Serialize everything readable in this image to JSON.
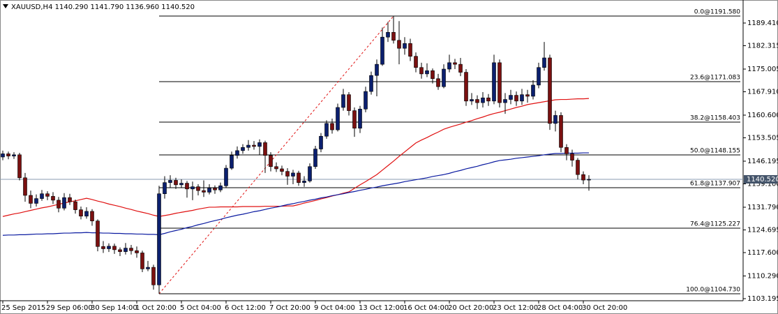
{
  "chart_data": {
    "type": "candlestick",
    "title": "XAUUSD,H4  1140.290 1141.790 1136.960 1140.520",
    "categories": [
      "25 Sep 2015",
      null,
      null,
      null,
      null,
      null,
      null,
      null,
      "29 Sep 06:00",
      null,
      null,
      null,
      null,
      null,
      null,
      null,
      "30 Sep 14:00",
      null,
      null,
      null,
      null,
      null,
      null,
      null,
      "1 Oct 20:00",
      null,
      null,
      null,
      null,
      null,
      null,
      null,
      "5 Oct 04:00",
      null,
      null,
      null,
      null,
      null,
      null,
      null,
      "6 Oct 12:00",
      null,
      null,
      null,
      null,
      null,
      null,
      null,
      "7 Oct 20:00",
      null,
      null,
      null,
      null,
      null,
      null,
      null,
      "9 Oct 04:00",
      null,
      null,
      null,
      null,
      null,
      null,
      null,
      "13 Oct 12:00",
      null,
      null,
      null,
      null,
      null,
      null,
      null,
      "16 Oct 04:00",
      null,
      null,
      null,
      null,
      null,
      null,
      null,
      "20 Oct 20:00",
      null,
      null,
      null,
      null,
      null,
      null,
      null,
      "23 Oct 12:00",
      null,
      null,
      null,
      null,
      null,
      null,
      null,
      "28 Oct 04:00",
      null,
      null,
      null,
      null,
      null,
      null,
      null,
      "30 Oct 20:00",
      null
    ],
    "ohlc": [
      [
        1147.5,
        1149.5,
        1146.5,
        1148.5
      ],
      [
        1148.5,
        1149.2,
        1146.8,
        1147.8
      ],
      [
        1147.8,
        1149.0,
        1146.9,
        1148.2
      ],
      [
        1148.2,
        1148.8,
        1140.2,
        1141.0
      ],
      [
        1141.0,
        1142.5,
        1133.5,
        1135.5
      ],
      [
        1135.5,
        1137.0,
        1131.5,
        1133.0
      ],
      [
        1133.0,
        1135.8,
        1132.0,
        1134.5
      ],
      [
        1134.5,
        1137.2,
        1133.8,
        1136.0
      ],
      [
        1136.0,
        1136.8,
        1134.0,
        1135.2
      ],
      [
        1135.2,
        1136.5,
        1132.8,
        1134.0
      ],
      [
        1134.0,
        1135.0,
        1130.2,
        1131.5
      ],
      [
        1131.5,
        1136.2,
        1130.8,
        1134.8
      ],
      [
        1134.8,
        1136.0,
        1132.5,
        1133.5
      ],
      [
        1133.5,
        1134.2,
        1129.8,
        1131.0
      ],
      [
        1131.0,
        1132.0,
        1128.0,
        1129.0
      ],
      [
        1129.0,
        1131.8,
        1128.2,
        1130.5
      ],
      [
        1130.5,
        1131.2,
        1126.0,
        1127.5
      ],
      [
        1127.5,
        1128.0,
        1118.0,
        1119.5
      ],
      [
        1119.5,
        1121.2,
        1117.5,
        1118.8
      ],
      [
        1118.8,
        1120.5,
        1117.8,
        1119.6
      ],
      [
        1119.6,
        1120.4,
        1117.2,
        1118.5
      ],
      [
        1118.5,
        1119.2,
        1116.5,
        1117.9
      ],
      [
        1117.9,
        1120.6,
        1117.0,
        1119.0
      ],
      [
        1119.0,
        1120.0,
        1117.0,
        1118.2
      ],
      [
        1118.2,
        1119.5,
        1116.0,
        1117.5
      ],
      [
        1117.5,
        1118.2,
        1111.5,
        1112.5
      ],
      [
        1112.5,
        1115.0,
        1111.8,
        1113.0
      ],
      [
        1113.0,
        1113.8,
        1106.0,
        1107.5
      ],
      [
        1107.5,
        1138.5,
        1104.73,
        1136.0
      ],
      [
        1136.0,
        1141.5,
        1134.5,
        1139.5
      ],
      [
        1139.5,
        1141.8,
        1138.0,
        1140.2
      ],
      [
        1140.2,
        1141.0,
        1137.5,
        1138.8
      ],
      [
        1138.8,
        1140.5,
        1137.8,
        1139.3
      ],
      [
        1139.3,
        1140.0,
        1134.8,
        1137.5
      ],
      [
        1137.5,
        1139.8,
        1134.0,
        1138.2
      ],
      [
        1138.2,
        1139.0,
        1135.5,
        1137.0
      ],
      [
        1137.0,
        1140.2,
        1135.0,
        1136.5
      ],
      [
        1136.5,
        1139.0,
        1135.8,
        1137.8
      ],
      [
        1137.8,
        1138.6,
        1136.0,
        1137.2
      ],
      [
        1137.2,
        1139.5,
        1136.5,
        1138.5
      ],
      [
        1138.5,
        1145.0,
        1138.0,
        1144.0
      ],
      [
        1144.0,
        1149.2,
        1143.5,
        1148.0
      ],
      [
        1148.0,
        1150.8,
        1147.0,
        1149.5
      ],
      [
        1149.5,
        1151.5,
        1148.5,
        1150.5
      ],
      [
        1150.5,
        1152.8,
        1149.5,
        1151.2
      ],
      [
        1151.2,
        1152.5,
        1149.8,
        1150.8
      ],
      [
        1150.8,
        1153.0,
        1148.2,
        1152.0
      ],
      [
        1152.0,
        1152.6,
        1142.5,
        1148.0
      ],
      [
        1148.0,
        1149.0,
        1143.0,
        1144.5
      ],
      [
        1144.5,
        1145.8,
        1142.8,
        1143.8
      ],
      [
        1143.8,
        1144.8,
        1141.8,
        1143.0
      ],
      [
        1143.0,
        1144.0,
        1138.8,
        1141.5
      ],
      [
        1141.5,
        1143.5,
        1139.0,
        1142.5
      ],
      [
        1142.5,
        1143.2,
        1138.5,
        1139.5
      ],
      [
        1139.5,
        1141.5,
        1138.2,
        1140.0
      ],
      [
        1140.0,
        1145.5,
        1139.5,
        1144.5
      ],
      [
        1144.5,
        1151.0,
        1143.8,
        1150.0
      ],
      [
        1150.0,
        1155.0,
        1149.0,
        1154.0
      ],
      [
        1154.0,
        1159.0,
        1153.2,
        1158.0
      ],
      [
        1158.0,
        1159.5,
        1154.8,
        1156.0
      ],
      [
        1156.0,
        1164.2,
        1155.5,
        1163.0
      ],
      [
        1163.0,
        1168.8,
        1162.0,
        1167.0
      ],
      [
        1167.0,
        1167.8,
        1160.5,
        1162.0
      ],
      [
        1162.0,
        1163.0,
        1153.8,
        1156.5
      ],
      [
        1156.5,
        1163.5,
        1155.0,
        1162.5
      ],
      [
        1162.5,
        1169.5,
        1161.5,
        1168.0
      ],
      [
        1168.0,
        1174.2,
        1167.0,
        1173.0
      ],
      [
        1173.0,
        1178.0,
        1166.5,
        1176.5
      ],
      [
        1176.5,
        1188.0,
        1176.0,
        1185.0
      ],
      [
        1185.0,
        1189.8,
        1183.5,
        1186.5
      ],
      [
        1186.5,
        1191.58,
        1183.0,
        1184.0
      ],
      [
        1184.0,
        1190.0,
        1176.5,
        1181.5
      ],
      [
        1181.5,
        1185.0,
        1179.5,
        1183.0
      ],
      [
        1183.0,
        1184.5,
        1177.5,
        1179.0
      ],
      [
        1179.0,
        1180.2,
        1174.0,
        1175.5
      ],
      [
        1175.5,
        1177.0,
        1172.0,
        1173.5
      ],
      [
        1173.5,
        1176.8,
        1172.5,
        1174.5
      ],
      [
        1174.5,
        1175.2,
        1170.5,
        1172.0
      ],
      [
        1172.0,
        1173.5,
        1168.5,
        1169.5
      ],
      [
        1169.5,
        1176.5,
        1169.0,
        1175.0
      ],
      [
        1175.0,
        1179.5,
        1174.0,
        1177.0
      ],
      [
        1177.0,
        1178.2,
        1175.0,
        1176.5
      ],
      [
        1176.5,
        1178.5,
        1172.8,
        1174.0
      ],
      [
        1174.0,
        1175.0,
        1163.5,
        1165.0
      ],
      [
        1165.0,
        1167.5,
        1163.8,
        1165.5
      ],
      [
        1165.5,
        1166.8,
        1162.5,
        1164.5
      ],
      [
        1164.5,
        1167.8,
        1163.0,
        1166.0
      ],
      [
        1166.0,
        1167.2,
        1163.5,
        1165.0
      ],
      [
        1165.0,
        1179.5,
        1164.0,
        1177.0
      ],
      [
        1177.0,
        1178.0,
        1163.0,
        1164.5
      ],
      [
        1164.5,
        1167.5,
        1161.0,
        1165.5
      ],
      [
        1165.5,
        1168.5,
        1164.0,
        1166.8
      ],
      [
        1166.8,
        1168.0,
        1163.5,
        1165.0
      ],
      [
        1165.0,
        1168.8,
        1163.8,
        1167.0
      ],
      [
        1167.0,
        1168.5,
        1164.5,
        1166.5
      ],
      [
        1166.5,
        1171.5,
        1165.5,
        1170.0
      ],
      [
        1170.0,
        1177.0,
        1169.0,
        1175.5
      ],
      [
        1175.5,
        1183.5,
        1174.5,
        1178.5
      ],
      [
        1178.5,
        1179.5,
        1156.0,
        1158.0
      ],
      [
        1158.0,
        1162.0,
        1155.5,
        1160.5
      ],
      [
        1160.5,
        1161.5,
        1149.0,
        1150.5
      ],
      [
        1150.5,
        1151.5,
        1146.5,
        1148.5
      ],
      [
        1148.5,
        1149.8,
        1144.5,
        1146.5
      ],
      [
        1146.5,
        1147.2,
        1140.5,
        1142.0
      ],
      [
        1142.0,
        1143.0,
        1139.0,
        1140.29
      ],
      [
        1140.29,
        1141.79,
        1136.96,
        1140.52
      ]
    ],
    "up_color": "#0b1f6e",
    "down_color": "#7a1010",
    "series": [
      {
        "color": "#e01010",
        "values": [
          1128.9,
          1129.3,
          1129.7,
          1130.0,
          1130.4,
          1130.8,
          1131.2,
          1131.6,
          1131.9,
          1132.3,
          1132.7,
          1133.1,
          1133.5,
          1133.8,
          1134.2,
          1134.6,
          1134.2,
          1133.7,
          1133.3,
          1132.8,
          1132.4,
          1132.0,
          1131.5,
          1131.1,
          1130.6,
          1130.2,
          1129.8,
          1129.3,
          1128.9,
          1129.2,
          1129.5,
          1129.9,
          1130.2,
          1130.5,
          1130.8,
          1131.2,
          1131.5,
          1131.8,
          1131.8,
          1131.9,
          1131.9,
          1131.9,
          1131.9,
          1132.0,
          1132.0,
          1132.0,
          1132.0,
          1132.1,
          1132.1,
          1132.1,
          1132.1,
          1132.2,
          1132.2,
          1132.6,
          1133.1,
          1133.5,
          1133.9,
          1134.4,
          1134.8,
          1135.3,
          1135.7,
          1136.2,
          1136.6,
          1137.7,
          1138.8,
          1139.8,
          1140.9,
          1142.0,
          1143.4,
          1144.8,
          1146.2,
          1147.7,
          1149.1,
          1150.5,
          1151.9,
          1152.8,
          1153.6,
          1154.5,
          1155.3,
          1156.2,
          1156.8,
          1157.3,
          1157.8,
          1158.4,
          1158.9,
          1159.5,
          1160.0,
          1160.6,
          1161.1,
          1161.5,
          1162.0,
          1162.5,
          1163.0,
          1163.4,
          1163.9,
          1164.2,
          1164.5,
          1164.8,
          1165.1,
          1165.4,
          1165.5,
          1165.5,
          1165.6,
          1165.7,
          1165.7,
          1165.8
        ]
      },
      {
        "color": "#0a1aa0",
        "values": [
          1123.0,
          1123.1,
          1123.1,
          1123.2,
          1123.2,
          1123.3,
          1123.4,
          1123.4,
          1123.5,
          1123.5,
          1123.6,
          1123.7,
          1123.7,
          1123.8,
          1123.8,
          1123.9,
          1123.8,
          1123.8,
          1123.7,
          1123.7,
          1123.6,
          1123.6,
          1123.5,
          1123.5,
          1123.4,
          1123.4,
          1123.3,
          1123.3,
          1123.2,
          1123.6,
          1124.1,
          1124.5,
          1124.9,
          1125.4,
          1125.8,
          1126.3,
          1126.7,
          1127.2,
          1127.6,
          1128.0,
          1128.5,
          1128.9,
          1129.3,
          1129.6,
          1130.0,
          1130.4,
          1130.7,
          1131.1,
          1131.5,
          1131.8,
          1132.2,
          1132.6,
          1132.9,
          1133.3,
          1133.6,
          1134.0,
          1134.3,
          1134.7,
          1135.0,
          1135.4,
          1135.7,
          1136.0,
          1136.4,
          1136.7,
          1137.1,
          1137.4,
          1137.8,
          1138.1,
          1138.5,
          1138.8,
          1139.1,
          1139.4,
          1139.8,
          1140.1,
          1140.4,
          1140.7,
          1141.0,
          1141.4,
          1141.7,
          1142.0,
          1142.4,
          1142.9,
          1143.3,
          1143.8,
          1144.2,
          1144.6,
          1145.1,
          1145.5,
          1146.0,
          1146.4,
          1146.6,
          1146.8,
          1147.1,
          1147.3,
          1147.5,
          1147.7,
          1147.9,
          1148.2,
          1148.4,
          1148.6,
          1148.6,
          1148.7,
          1148.7,
          1148.7,
          1148.8,
          1148.8
        ]
      }
    ],
    "fib_levels": [
      {
        "value": 1191.58,
        "label": "0.0@1191.580"
      },
      {
        "value": 1171.083,
        "label": "23.6@1171.083"
      },
      {
        "value": 1158.403,
        "label": "38.2@1158.403"
      },
      {
        "value": 1148.155,
        "label": "50.0@1148.155"
      },
      {
        "value": 1137.907,
        "label": "61.8@1137.907"
      },
      {
        "value": 1125.227,
        "label": "76.4@1125.227"
      },
      {
        "value": 1104.73,
        "label": "100.0@1104.730"
      }
    ],
    "fib_color": "#000000",
    "trendline_color": "#e01010",
    "last_price": {
      "value": 1140.52,
      "label": "1140.520"
    },
    "ylim": [
      1102.54,
      1196.61
    ],
    "yticks": [
      {
        "value": 1103.195,
        "label": "1103.195"
      },
      {
        "value": 1110.29,
        "label": "1110.290"
      },
      {
        "value": 1117.6,
        "label": "1117.600"
      },
      {
        "value": 1124.695,
        "label": "1124.695"
      },
      {
        "value": 1131.79,
        "label": "1131.790"
      },
      {
        "value": 1139.1,
        "label": "1139.100"
      },
      {
        "value": 1146.195,
        "label": "1146.195"
      },
      {
        "value": 1153.505,
        "label": "1153.505"
      },
      {
        "value": 1160.6,
        "label": "1160.600"
      },
      {
        "value": 1167.91,
        "label": "1167.910"
      },
      {
        "value": 1175.005,
        "label": "1175.005"
      },
      {
        "value": 1182.315,
        "label": "1182.315"
      },
      {
        "value": 1189.41,
        "label": "1189.410"
      }
    ],
    "grid": false
  }
}
